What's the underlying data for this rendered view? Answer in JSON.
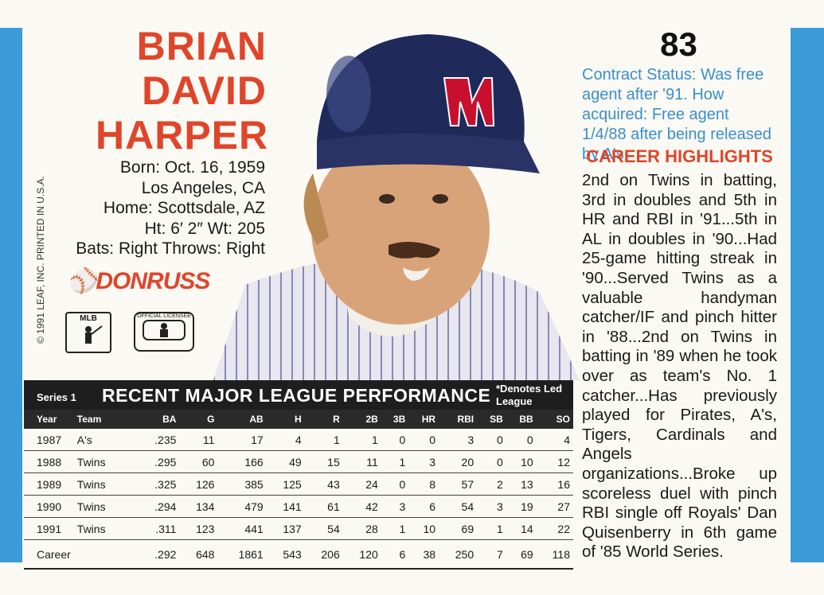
{
  "card_number": "83",
  "player": {
    "name_lines": [
      "BRIAN",
      "DAVID",
      "HARPER"
    ],
    "bio": [
      "Born: Oct. 16, 1959",
      "Los Angeles, CA",
      "Home: Scottsdale, AZ",
      "Ht: 6′ 2″ Wt: 205",
      "Bats: Right Throws: Right"
    ]
  },
  "copyright": "© 1991 LEAF, INC. PRINTED IN U.S.A.",
  "brand": "DONRUSS",
  "logos": {
    "mlb": "MLB",
    "licensed": "OFFICIAL LICENSEE"
  },
  "contract": "Contract Status: Was free agent after '91. How acquired: Free agent 1/4/88 after being released by A's",
  "highlights_title": "CAREER HIGHLIGHTS",
  "highlights": "2nd on Twins in batting, 3rd in doubles and 5th in HR and RBI in '91...5th in AL in doubles in '90...Had 25-game hitting streak in '90...Served Twins as a valuable handyman catcher/IF and pinch hitter in '88...2nd on Twins in batting in '89 when he took over as team's No. 1 catcher...Has previously played for Pirates, A's, Tigers, Cardinals and Angels organizations...Broke up scoreless duel with pinch RBI single off Royals' Dan Quisenberry in 6th game of '85 World Series.",
  "table": {
    "series": "Series 1",
    "title": "RECENT MAJOR LEAGUE PERFORMANCE",
    "denotes": "*Denotes Led League",
    "columns": [
      "Year",
      "Team",
      "BA",
      "G",
      "AB",
      "H",
      "R",
      "2B",
      "3B",
      "HR",
      "RBI",
      "SB",
      "BB",
      "SO"
    ],
    "rows": [
      [
        "1987",
        "A's",
        ".235",
        "11",
        "17",
        "4",
        "1",
        "1",
        "0",
        "0",
        "3",
        "0",
        "0",
        "4"
      ],
      [
        "1988",
        "Twins",
        ".295",
        "60",
        "166",
        "49",
        "15",
        "11",
        "1",
        "3",
        "20",
        "0",
        "10",
        "12"
      ],
      [
        "1989",
        "Twins",
        ".325",
        "126",
        "385",
        "125",
        "43",
        "24",
        "0",
        "8",
        "57",
        "2",
        "13",
        "16"
      ],
      [
        "1990",
        "Twins",
        ".294",
        "134",
        "479",
        "141",
        "61",
        "42",
        "3",
        "6",
        "54",
        "3",
        "19",
        "27"
      ],
      [
        "1991",
        "Twins",
        ".311",
        "123",
        "441",
        "137",
        "54",
        "28",
        "1",
        "10",
        "69",
        "1",
        "14",
        "22"
      ]
    ],
    "career": [
      "Career",
      "",
      ".292",
      "648",
      "1861",
      "543",
      "206",
      "120",
      "6",
      "38",
      "250",
      "7",
      "69",
      "118"
    ]
  },
  "colors": {
    "accent": "#e0452a",
    "blue": "#3a9bd8",
    "contract": "#3a8fcb"
  }
}
